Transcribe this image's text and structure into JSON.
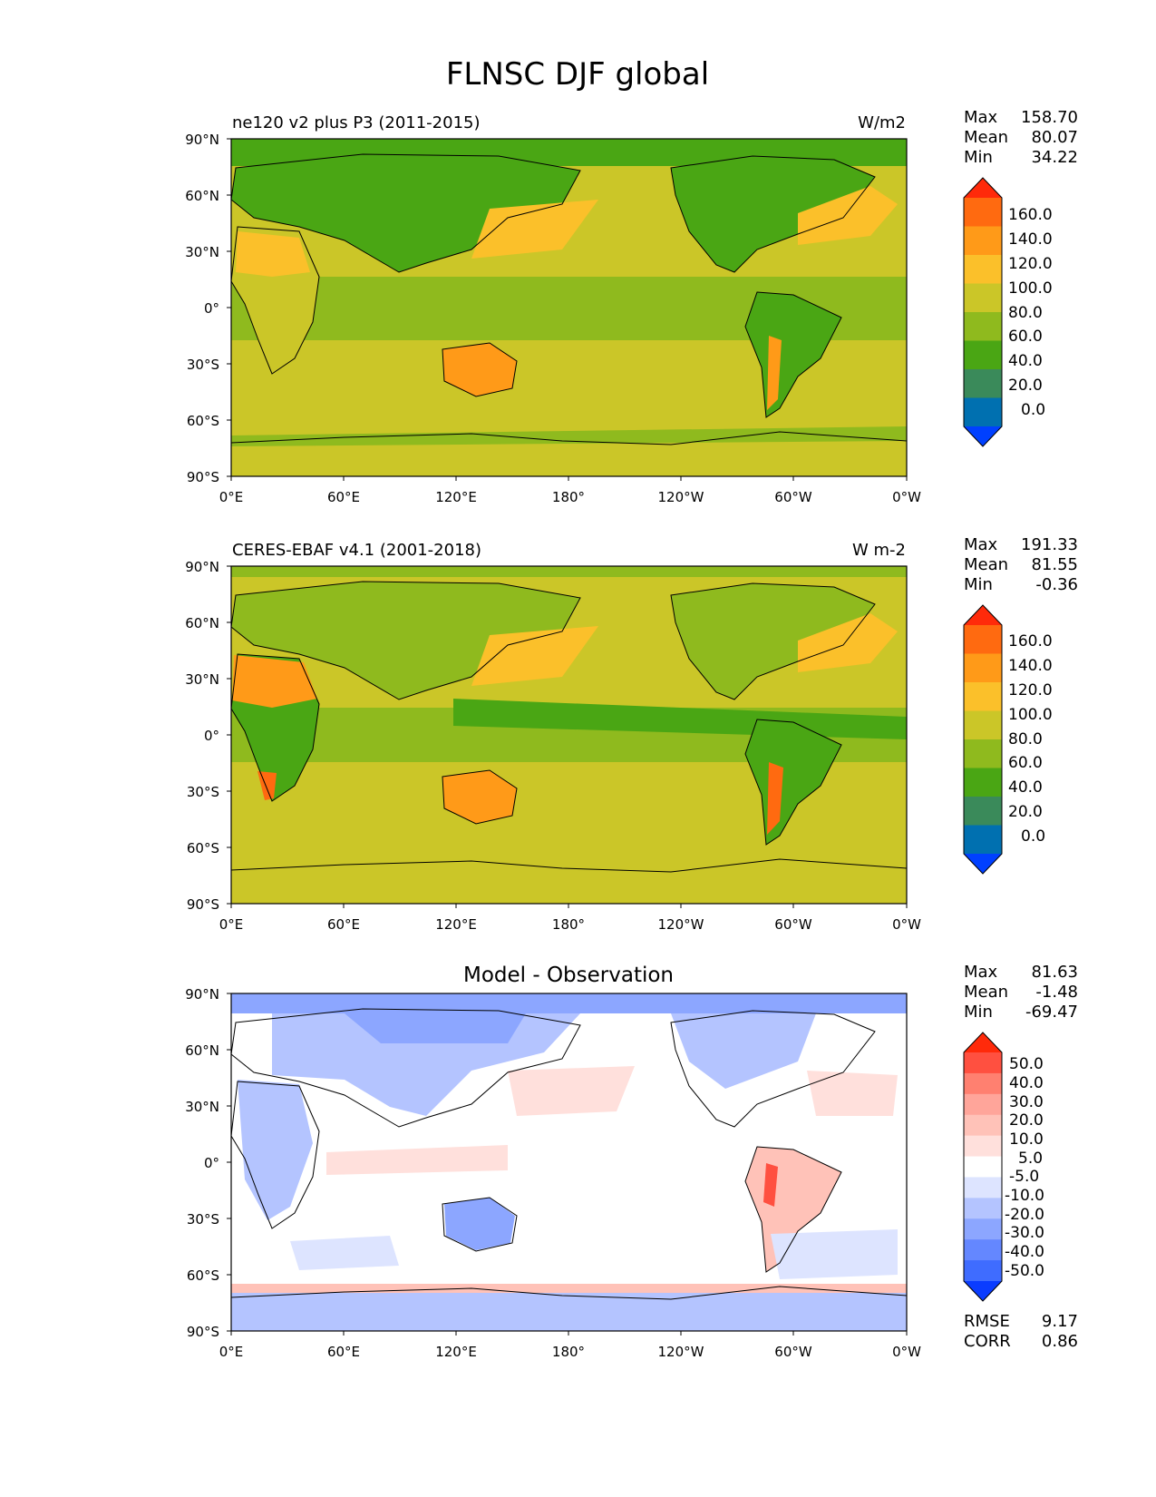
{
  "title": "FLNSC DJF global",
  "colors": {
    "ramp_main": [
      "#0040ff",
      "#0070b0",
      "#3a8a5a",
      "#4aa614",
      "#8fba1e",
      "#cbc628",
      "#fbc02a",
      "#ff9a18",
      "#ff6a10",
      "#ff2a0a"
    ],
    "ramp_diff": [
      "#0a3cff",
      "#3f6cff",
      "#6487ff",
      "#8ca6ff",
      "#b4c4ff",
      "#dde4ff",
      "#ffffff",
      "#ffe0dc",
      "#ffc2b8",
      "#ffa59a",
      "#ff8070",
      "#ff5040",
      "#ff2a0a"
    ]
  },
  "chart_data": [
    {
      "type": "heatmap",
      "title": "ne120 v2 plus P3 (2011-2015)",
      "units": "W/m2",
      "stats": {
        "max_label": "Max",
        "max": "158.70",
        "mean_label": "Mean",
        "mean": "80.07",
        "min_label": "Min",
        "min": "34.22"
      },
      "x_ticks": [
        "0°E",
        "60°E",
        "120°E",
        "180°",
        "120°W",
        "60°W",
        "0°W"
      ],
      "y_ticks": [
        "90°N",
        "60°N",
        "30°N",
        "0°",
        "30°S",
        "60°S",
        "90°S"
      ],
      "colorbar_ticks": [
        "160.0",
        "140.0",
        "120.0",
        "100.0",
        "80.0",
        "60.0",
        "40.0",
        "20.0",
        "0.0"
      ]
    },
    {
      "type": "heatmap",
      "title": "CERES-EBAF v4.1 (2001-2018)",
      "units": "W m-2",
      "stats": {
        "max_label": "Max",
        "max": "191.33",
        "mean_label": "Mean",
        "mean": "81.55",
        "min_label": "Min",
        "min": "-0.36"
      },
      "x_ticks": [
        "0°E",
        "60°E",
        "120°E",
        "180°",
        "120°W",
        "60°W",
        "0°W"
      ],
      "y_ticks": [
        "90°N",
        "60°N",
        "30°N",
        "0°",
        "30°S",
        "60°S",
        "90°S"
      ],
      "colorbar_ticks": [
        "160.0",
        "140.0",
        "120.0",
        "100.0",
        "80.0",
        "60.0",
        "40.0",
        "20.0",
        "0.0"
      ]
    },
    {
      "type": "heatmap",
      "title": "Model - Observation",
      "units": "",
      "stats": {
        "max_label": "Max",
        "max": "81.63",
        "mean_label": "Mean",
        "mean": "-1.48",
        "min_label": "Min",
        "min": "-69.47"
      },
      "x_ticks": [
        "0°E",
        "60°E",
        "120°E",
        "180°",
        "120°W",
        "60°W",
        "0°W"
      ],
      "y_ticks": [
        "90°N",
        "60°N",
        "30°N",
        "0°",
        "30°S",
        "60°S",
        "90°S"
      ],
      "colorbar_ticks": [
        "50.0",
        "40.0",
        "30.0",
        "20.0",
        "10.0",
        "5.0",
        "-5.0",
        "-10.0",
        "-20.0",
        "-30.0",
        "-40.0",
        "-50.0"
      ],
      "rmse_label": "RMSE",
      "rmse": "9.17",
      "corr_label": "CORR",
      "corr": "0.86"
    }
  ]
}
